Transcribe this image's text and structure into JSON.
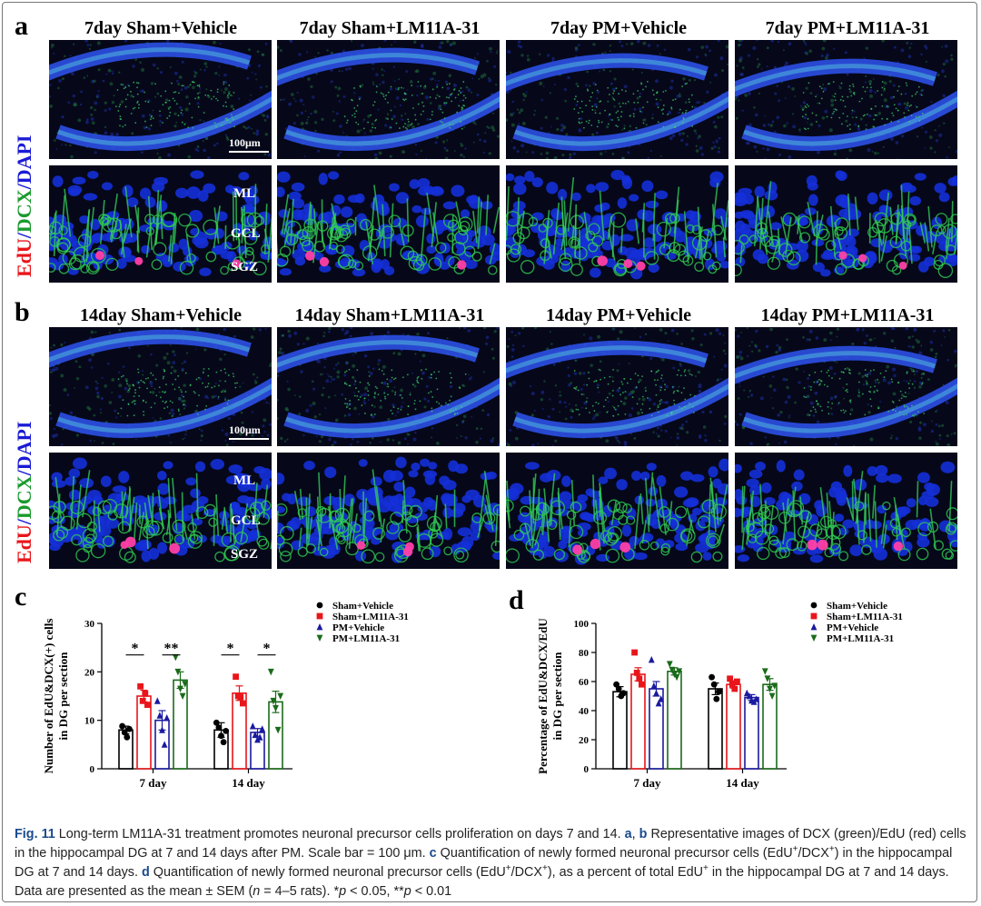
{
  "panels": {
    "a": {
      "letter": "a",
      "titles": [
        "7day Sham+Vehicle",
        "7day Sham+LM11A-31",
        "7day PM+Vehicle",
        "7day PM+LM11A-31"
      ],
      "scale_bar": "100μm",
      "layers": [
        "ML",
        "GCL",
        "SGZ"
      ]
    },
    "b": {
      "letter": "b",
      "titles": [
        "14day Sham+Vehicle",
        "14day Sham+LM11A-31",
        "14day PM+Vehicle",
        "14day PM+LM11A-31"
      ],
      "scale_bar": "100μm",
      "layers": [
        "ML",
        "GCL",
        "SGZ"
      ]
    },
    "stain": {
      "edu": "EdU",
      "sep1": "/",
      "dcx": "DCX",
      "sep2": "/",
      "dapi": "DAPI",
      "edu_color": "#e8161b",
      "dcx_color": "#1a9a2e",
      "dapi_color": "#1b1bd6"
    }
  },
  "chart_data": [
    {
      "panel": "c",
      "type": "bar",
      "ylabel_line1": "Number of EdU&DCX(+) cells",
      "ylabel_line2": "in DG per section",
      "ylim": [
        0,
        30
      ],
      "yticks": [
        0,
        10,
        20,
        30
      ],
      "categories": [
        "7 day",
        "14 day"
      ],
      "series": [
        {
          "name": "Sham+Vehicle",
          "color": "#000000",
          "marker": "circle",
          "values": [
            8.0,
            8.0
          ],
          "sem": [
            0.8,
            1.5
          ],
          "points": [
            [
              8.8,
              7.5,
              6.5,
              8.2
            ],
            [
              9.5,
              8.5,
              6.8,
              5.5,
              7.8
            ]
          ]
        },
        {
          "name": "Sham+LM11A-31",
          "color": "#e8161b",
          "marker": "square",
          "values": [
            15.0,
            15.6
          ],
          "sem": [
            1.2,
            1.5
          ],
          "points": [
            [
              17.0,
              14.0,
              15.5,
              13.2
            ],
            [
              19.0,
              15.0,
              14.8,
              13.5
            ]
          ]
        },
        {
          "name": "PM+Vehicle",
          "color": "#1a1aa0",
          "marker": "triangle-up",
          "values": [
            10.0,
            7.5
          ],
          "sem": [
            2.0,
            0.8
          ],
          "points": [
            [
              14.0,
              11.0,
              8.0,
              5.0,
              10.5
            ],
            [
              8.8,
              7.0,
              6.0,
              6.5,
              8.2
            ]
          ]
        },
        {
          "name": "PM+LM11A-31",
          "color": "#1a6b1a",
          "marker": "triangle-down",
          "values": [
            18.3,
            13.8
          ],
          "sem": [
            1.7,
            2.2
          ],
          "points": [
            [
              23.0,
              20.0,
              16.5,
              15.0,
              17.5
            ],
            [
              20.0,
              14.0,
              12.5,
              8.0,
              15.0
            ]
          ]
        }
      ],
      "significance": [
        {
          "label": "*",
          "group": 0,
          "from": 0,
          "to": 1,
          "y": 23.5
        },
        {
          "label": "**",
          "group": 0,
          "from": 2,
          "to": 3,
          "y": 23.5
        },
        {
          "label": "*",
          "group": 1,
          "from": 0,
          "to": 1,
          "y": 23.5
        },
        {
          "label": "*",
          "group": 1,
          "from": 2,
          "to": 3,
          "y": 23.5
        }
      ]
    },
    {
      "panel": "d",
      "type": "bar",
      "ylabel_line1": "Percentage of EdU&DCX/EdU",
      "ylabel_line2": "in DG per section",
      "ylim": [
        0,
        100
      ],
      "yticks": [
        0,
        20,
        40,
        60,
        80,
        100
      ],
      "categories": [
        "7 day",
        "14 day"
      ],
      "series": [
        {
          "name": "Sham+Vehicle",
          "color": "#000000",
          "marker": "circle",
          "values": [
            53.0,
            55.0
          ],
          "sem": [
            3.5,
            4.0
          ],
          "points": [
            [
              58.0,
              55.0,
              50.0,
              52.0
            ],
            [
              63.0,
              58.0,
              48.0,
              53.0
            ]
          ]
        },
        {
          "name": "Sham+LM11A-31",
          "color": "#e8161b",
          "marker": "square",
          "values": [
            65.0,
            58.0
          ],
          "sem": [
            4.5,
            2.5
          ],
          "points": [
            [
              80.0,
              66.0,
              62.0,
              58.0
            ],
            [
              62.0,
              58.0,
              55.0,
              60.0
            ]
          ]
        },
        {
          "name": "PM+Vehicle",
          "color": "#1a1aa0",
          "marker": "triangle-up",
          "values": [
            55.0,
            49.0
          ],
          "sem": [
            5.0,
            2.0
          ],
          "points": [
            [
              75.0,
              57.0,
              52.0,
              45.0,
              48.0
            ],
            [
              52.0,
              50.0,
              47.0,
              46.0,
              48.0
            ]
          ]
        },
        {
          "name": "PM+LM11A-31",
          "color": "#1a6b1a",
          "marker": "triangle-down",
          "values": [
            67.0,
            58.0
          ],
          "sem": [
            2.5,
            4.0
          ],
          "points": [
            [
              72.0,
              68.0,
              65.0,
              63.0,
              67.0
            ],
            [
              67.0,
              62.0,
              55.0,
              50.0,
              57.0
            ]
          ]
        }
      ],
      "significance": []
    }
  ],
  "caption": {
    "fig": "Fig. 11",
    "parts": [
      {
        "t": "  Long-term LM11A-31 treatment promotes neuronal precursor cells proliferation on days 7 and 14. "
      },
      {
        "t": "a",
        "b": true
      },
      {
        "t": ", "
      },
      {
        "t": "b",
        "b": true
      },
      {
        "t": " Representative images of DCX (green)/EdU (red) cells in the hippocampal DG at 7 and 14 days after PM. Scale bar = 100 μm. "
      },
      {
        "t": "c",
        "b": true
      },
      {
        "t": " Quantification of newly formed neuronal precursor cells (EdU"
      },
      {
        "t": "+",
        "sup": true
      },
      {
        "t": "/DCX"
      },
      {
        "t": "+",
        "sup": true
      },
      {
        "t": ") in the hippocampal DG at 7 and 14 days. "
      },
      {
        "t": "d",
        "b": true
      },
      {
        "t": " Quantification of newly formed neuronal precursor cells (EdU"
      },
      {
        "t": "+",
        "sup": true
      },
      {
        "t": "/DCX"
      },
      {
        "t": "+",
        "sup": true
      },
      {
        "t": "), as a percent of total EdU"
      },
      {
        "t": "+",
        "sup": true
      },
      {
        "t": " in the hippocampal DG at 7 and 14 days. Data are presented as the mean ± SEM ("
      },
      {
        "t": "n",
        "i": true
      },
      {
        "t": " = 4–5 rats). *"
      },
      {
        "t": "p",
        "i": true
      },
      {
        "t": " < 0.05, **"
      },
      {
        "t": "p",
        "i": true
      },
      {
        "t": " < 0.01"
      }
    ]
  }
}
